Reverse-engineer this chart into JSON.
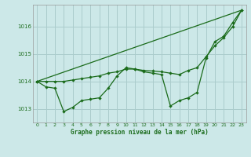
{
  "bg_color": "#cce8e8",
  "grid_color": "#aacccc",
  "line_color": "#1a6b1a",
  "title": "Graphe pression niveau de la mer (hPa)",
  "xlim": [
    -0.5,
    23.5
  ],
  "ylim": [
    1012.5,
    1016.8
  ],
  "yticks": [
    1013,
    1014,
    1015,
    1016
  ],
  "xticks": [
    0,
    1,
    2,
    3,
    4,
    5,
    6,
    7,
    8,
    9,
    10,
    11,
    12,
    13,
    14,
    15,
    16,
    17,
    18,
    19,
    20,
    21,
    22,
    23
  ],
  "series1_x": [
    0,
    1,
    2,
    3,
    4,
    5,
    6,
    7,
    8,
    9,
    10,
    11,
    12,
    13,
    14,
    15,
    16,
    17,
    18,
    19,
    20,
    21,
    22,
    23
  ],
  "series1_y": [
    1014.0,
    1013.8,
    1013.75,
    1012.9,
    1013.05,
    1013.3,
    1013.35,
    1013.4,
    1013.75,
    1014.2,
    1014.5,
    1014.45,
    1014.35,
    1014.3,
    1014.25,
    1013.1,
    1013.3,
    1013.4,
    1013.6,
    1014.85,
    1015.45,
    1015.65,
    1016.15,
    1016.6
  ],
  "series2_x": [
    0,
    1,
    2,
    3,
    4,
    5,
    6,
    7,
    8,
    9,
    10,
    11,
    12,
    13,
    14,
    15,
    16,
    17,
    18,
    19,
    20,
    21,
    22,
    23
  ],
  "series2_y": [
    1014.0,
    1014.0,
    1014.0,
    1014.0,
    1014.05,
    1014.1,
    1014.15,
    1014.2,
    1014.3,
    1014.35,
    1014.45,
    1014.45,
    1014.4,
    1014.38,
    1014.35,
    1014.3,
    1014.25,
    1014.4,
    1014.5,
    1014.9,
    1015.3,
    1015.6,
    1016.0,
    1016.6
  ],
  "series3_x": [
    0,
    23
  ],
  "series3_y": [
    1014.0,
    1016.6
  ]
}
